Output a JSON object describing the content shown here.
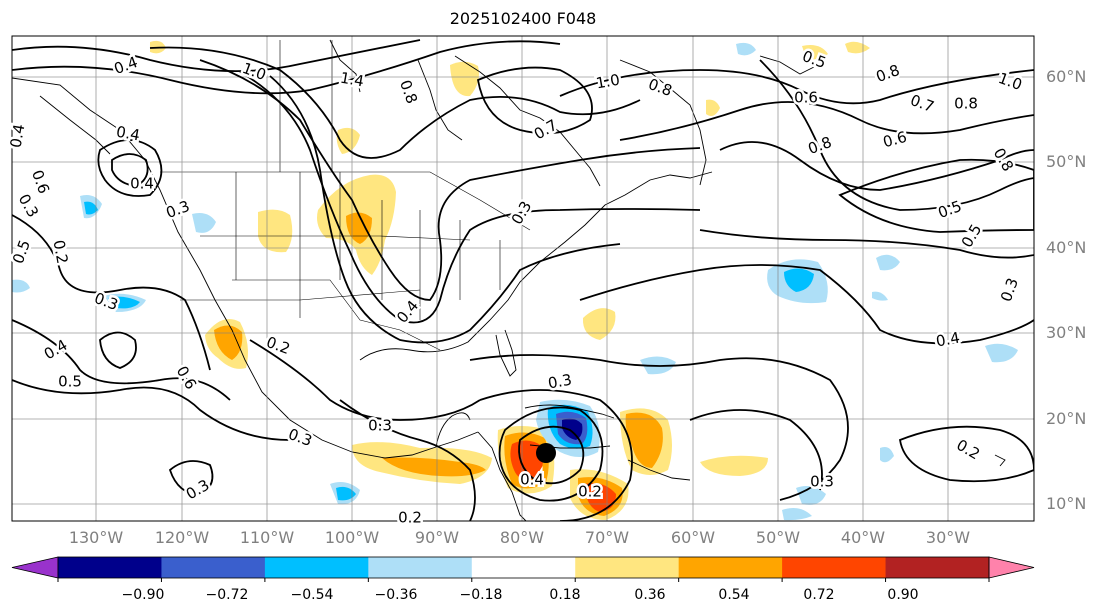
{
  "title": "2025102400 F048",
  "colors": {
    "land": "#000000",
    "grid": "#808080",
    "contour": "#000000",
    "storm_marker": "#000000"
  },
  "latitude_labels": [
    "60°N",
    "50°N",
    "40°N",
    "30°N",
    "20°N",
    "10°N"
  ],
  "longitude_labels": [
    "130°W",
    "120°W",
    "110°W",
    "100°W",
    "90°W",
    "80°W",
    "70°W",
    "60°W",
    "50°W",
    "40°W",
    "30°W"
  ],
  "contour_labels": [
    "0.4",
    "1.0",
    "1.4",
    "0.8",
    "0.7",
    "1.0",
    "0.8",
    "0.5",
    "0.8",
    "1.0",
    "0.6",
    "0.7",
    "0.8",
    "0.4",
    "0.4",
    "0.6",
    "0.8",
    "0.6",
    "0.8",
    "0.5",
    "0.3",
    "0.5",
    "0.3",
    "0.3",
    "0.2",
    "0.5",
    "0.3",
    "0.4",
    "0.2",
    "0.4",
    "0.5",
    "0.6",
    "0.3",
    "0.3",
    "0.3",
    "0.2",
    "0.3",
    "0.4",
    "0.2",
    "0.4",
    "0.3",
    "0.3",
    "0.4",
    "0.2"
  ],
  "colorbar": {
    "ticks": [
      "−0.90",
      "−0.72",
      "−0.54",
      "−0.36",
      "−0.18",
      "0.18",
      "0.36",
      "0.54",
      "0.72",
      "0.90"
    ],
    "colors": [
      "#9932cc",
      "#00008b",
      "#3a5fcd",
      "#00bfff",
      "#aedff7",
      "#ffffff",
      "#ffe680",
      "#ffa500",
      "#ff4500",
      "#b22222",
      "#ff82ab"
    ]
  }
}
